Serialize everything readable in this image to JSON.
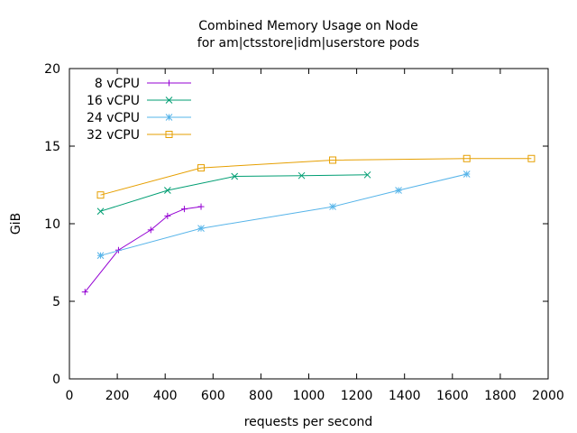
{
  "chart_data": {
    "type": "line",
    "title": "Combined Memory Usage on Node",
    "subtitle": "for am|ctsstore|idm|userstore pods",
    "xlabel": "requests per second",
    "ylabel": "GiB",
    "xlim": [
      0,
      2000
    ],
    "ylim": [
      0,
      20
    ],
    "xticks": [
      0,
      200,
      400,
      600,
      800,
      1000,
      1200,
      1400,
      1600,
      1800,
      2000
    ],
    "yticks": [
      0,
      5,
      10,
      15,
      20
    ],
    "legend_position": "top-left",
    "series": [
      {
        "name": "8 vCPU",
        "color": "#9400d3",
        "marker": "plus",
        "x": [
          65,
          205,
          340,
          410,
          480,
          550
        ],
        "y": [
          5.6,
          8.3,
          9.6,
          10.5,
          10.95,
          11.1
        ]
      },
      {
        "name": "16 vCPU",
        "color": "#009e73",
        "marker": "cross",
        "x": [
          130,
          410,
          690,
          970,
          1245
        ],
        "y": [
          10.8,
          12.15,
          13.05,
          13.1,
          13.15
        ]
      },
      {
        "name": "24 vCPU",
        "color": "#56b4e9",
        "marker": "star",
        "x": [
          130,
          550,
          1100,
          1375,
          1660
        ],
        "y": [
          7.95,
          9.7,
          11.1,
          12.15,
          13.2
        ]
      },
      {
        "name": "32 vCPU",
        "color": "#e69f00",
        "marker": "square",
        "x": [
          130,
          550,
          1100,
          1660,
          1930
        ],
        "y": [
          11.85,
          13.6,
          14.1,
          14.2,
          14.2
        ]
      }
    ]
  }
}
